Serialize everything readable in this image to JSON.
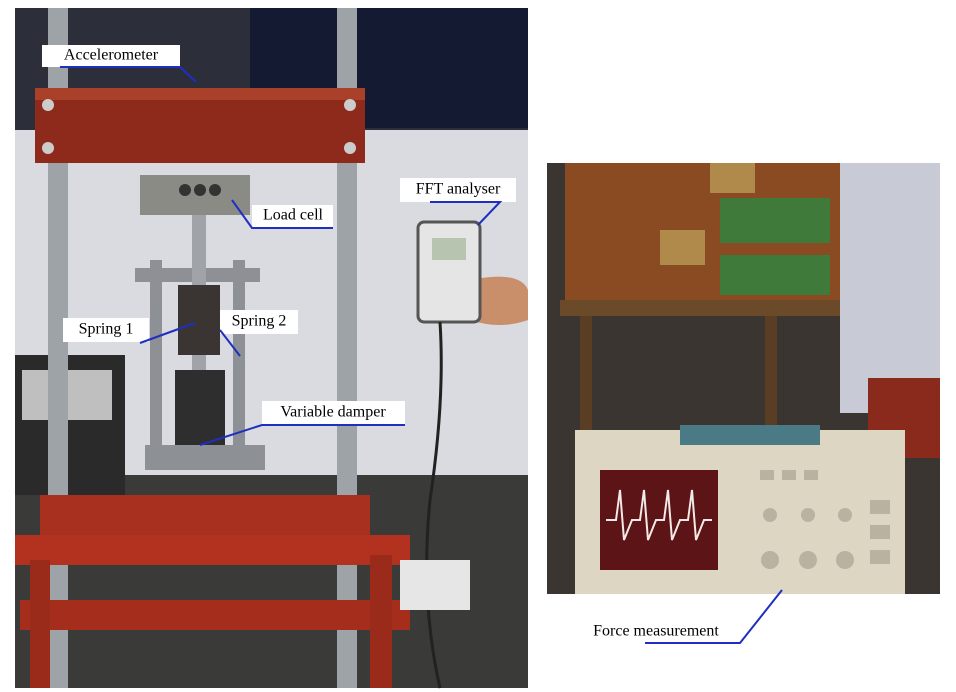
{
  "labels": {
    "accelerometer": "Accelerometer",
    "load_cell": "Load cell",
    "fft_analyser": "FFT analyser",
    "spring_1": "Spring 1",
    "spring_2": "Spring 2",
    "variable_damper": "Variable damper",
    "force_measurement": "Force measurement"
  }
}
